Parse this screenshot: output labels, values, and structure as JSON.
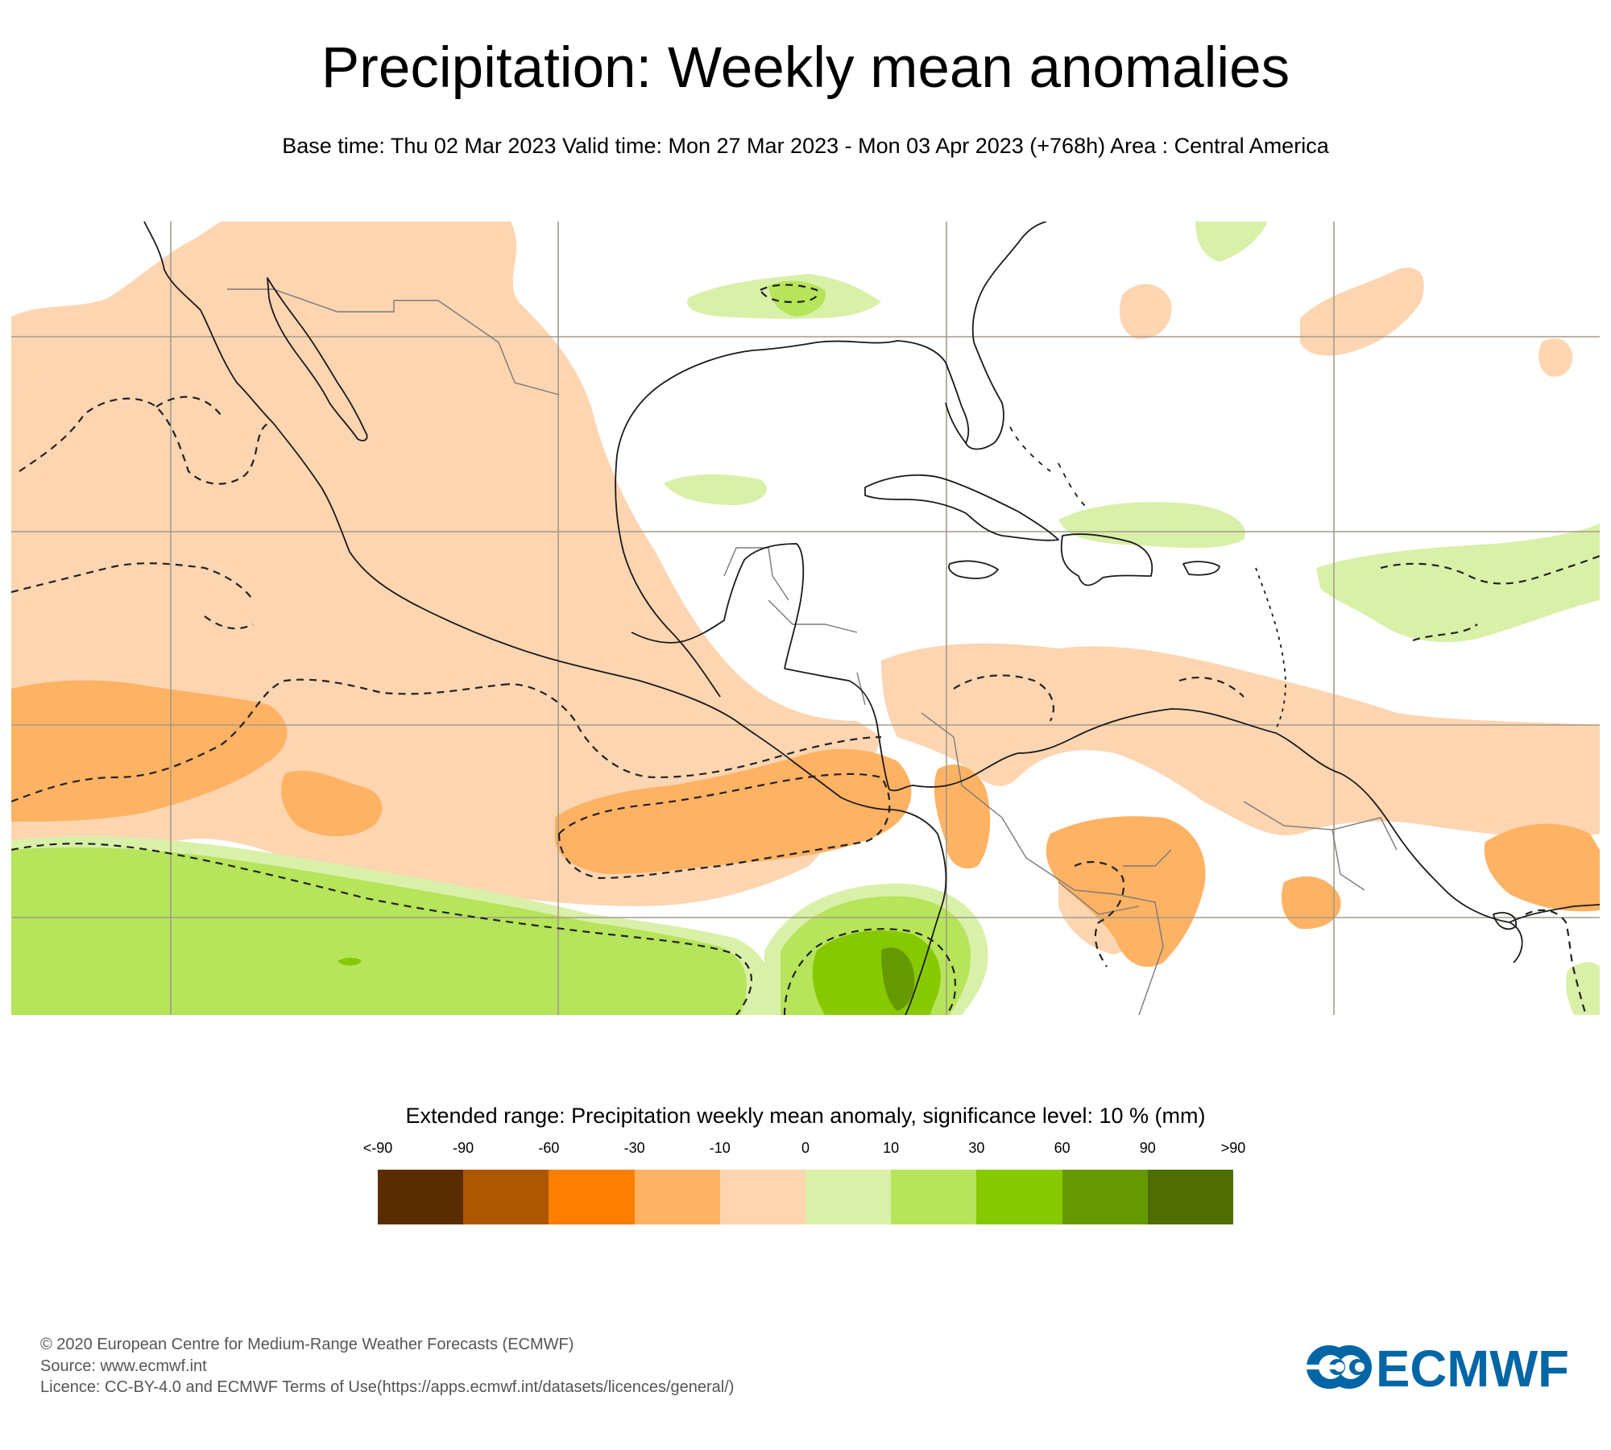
{
  "header": {
    "title": "Precipitation: Weekly mean anomalies",
    "subtitle": "Base time: Thu 02 Mar 2023 Valid time: Mon 27 Mar 2023 - Mon 03 Apr 2023 (+768h) Area : Central America"
  },
  "map": {
    "area": "Central America",
    "colors": {
      "ocean_land_bg": "#ffffff",
      "gridline": "#a39c8a",
      "coastline": "#1a1a1a",
      "border": "#7a7a7a",
      "significance_contour": "#222222",
      "cat_m10_0": "#fdd5b1",
      "cat_m30_m10": "#fdb264",
      "cat_0_10": "#d9f0a9",
      "cat_10_30": "#b6e45a",
      "cat_30_60": "#87c900",
      "cat_60_90": "#669900"
    }
  },
  "legend": {
    "title": "Extended range: Precipitation weekly mean anomaly, significance level: 10 % (mm)",
    "tick_labels": [
      "<-90",
      "-90",
      "-60",
      "-30",
      "-10",
      "0",
      "10",
      "30",
      "60",
      "90",
      ">90"
    ],
    "boxes": [
      {
        "range": "<-90 to -90",
        "color": "#5a2d00"
      },
      {
        "range": "-90 to -60",
        "color": "#ad5700"
      },
      {
        "range": "-60 to -30",
        "color": "#fd7f00"
      },
      {
        "range": "-30 to -10",
        "color": "#fdb264"
      },
      {
        "range": "-10 to 0",
        "color": "#fdd5b1"
      },
      {
        "range": "0 to 10",
        "color": "#d9f0a9"
      },
      {
        "range": "10 to 30",
        "color": "#b6e45a"
      },
      {
        "range": "30 to 60",
        "color": "#87c900"
      },
      {
        "range": "60 to 90",
        "color": "#669900"
      },
      {
        "range": "90 to >90",
        "color": "#4f6d00"
      }
    ]
  },
  "footer": {
    "copyright": "© 2020 European Centre for Medium-Range Weather Forecasts (ECMWF)",
    "source": "Source: www.ecmwf.int",
    "licence": "Licence: CC-BY-4.0 and ECMWF Terms of Use(https://apps.ecmwf.int/datasets/licences/general/)"
  },
  "logo": {
    "text": "ECMWF",
    "color": "#0066a6"
  }
}
